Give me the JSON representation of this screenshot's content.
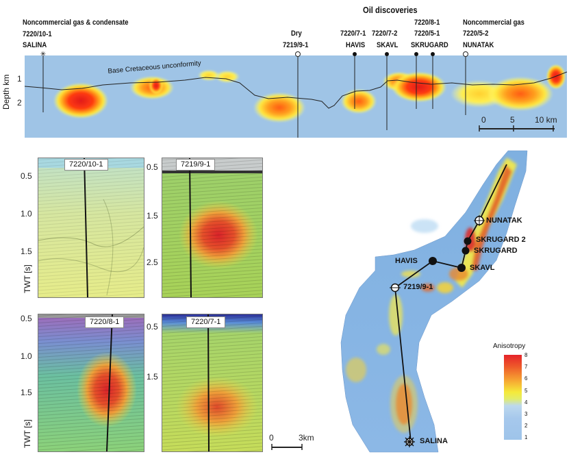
{
  "header": {
    "oil_title": "Oil discoveries",
    "left_group": [
      "Noncommercial gas & condensate",
      "7220/10-1",
      "SALINA"
    ],
    "dry": [
      "Dry",
      "7219/9-1"
    ],
    "havis": [
      "7220/7-1",
      "HAVIS"
    ],
    "skavl": [
      "7220/7-2",
      "SKAVL"
    ],
    "skrugard": [
      "7220/8-1",
      "7220/5-1",
      "SKRUGARD"
    ],
    "nunatak": [
      "Noncommercial gas",
      "7220/5-2",
      "NUNATAK"
    ]
  },
  "section": {
    "ylabel": "Depth km",
    "ticks": [
      "1",
      "2"
    ],
    "unconformity": "Base Cretaceous unconformity",
    "scale": [
      "0",
      "5",
      "10 km"
    ]
  },
  "seismic": {
    "ylabel": "TWT [s]",
    "panels": [
      {
        "tag": "7220/10-1",
        "ticks": [
          "0.5",
          "1.0",
          "1.5"
        ]
      },
      {
        "tag": "7219/9-1",
        "ticks": [
          "0.5",
          "1.5",
          "2.5"
        ]
      },
      {
        "tag": "7220/8-1",
        "ticks": [
          "0.5",
          "1.0",
          "1.5"
        ]
      },
      {
        "tag": "7220/7-1",
        "ticks": [
          "0.5",
          "1.5"
        ]
      }
    ],
    "scale": [
      "0",
      "3km"
    ]
  },
  "map": {
    "labels": {
      "nunatak": "NUNATAK",
      "skrugard2": "SKRUGARD 2",
      "skrugard": "SKRUGARD",
      "havis": "HAVIS",
      "skavl": "SKAVL",
      "dry": "7219/9-1",
      "salina": "SALINA"
    },
    "colorbar": {
      "title": "Anisotropy",
      "ticks": [
        "8",
        "7",
        "6",
        "5",
        "4",
        "3",
        "2",
        "1"
      ]
    }
  }
}
